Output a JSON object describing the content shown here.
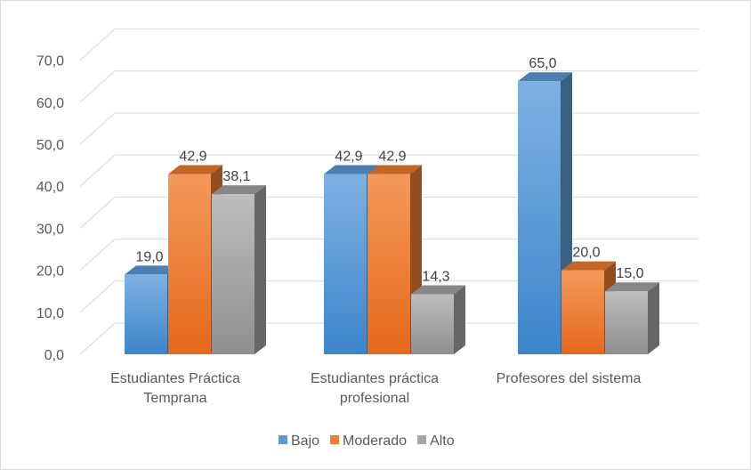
{
  "chart_data": {
    "type": "bar",
    "variant": "3d-clustered-column",
    "categories": [
      [
        "Estudiantes Práctica",
        "Temprana"
      ],
      [
        "Estudiantes práctica",
        "profesional"
      ],
      [
        "Profesores del sistema"
      ]
    ],
    "series": [
      {
        "name": "Bajo",
        "values": [
          19.0,
          42.9,
          65.0
        ],
        "color": "#5b9bd5"
      },
      {
        "name": "Moderado",
        "values": [
          42.9,
          42.9,
          20.0
        ],
        "color": "#ed7d31"
      },
      {
        "name": "Alto",
        "values": [
          38.1,
          14.3,
          15.0
        ],
        "color": "#a5a5a5"
      }
    ],
    "data_labels": [
      [
        "19,0",
        "42,9",
        "38,1"
      ],
      [
        "42,9",
        "42,9",
        "14,3"
      ],
      [
        "65,0",
        "20,0",
        "15,0"
      ]
    ],
    "ylim": [
      0,
      70
    ],
    "yticks": [
      "0,0",
      "10,0",
      "20,0",
      "30,0",
      "40,0",
      "50,0",
      "60,0",
      "70,0"
    ],
    "grid": true,
    "legend_position": "bottom"
  }
}
